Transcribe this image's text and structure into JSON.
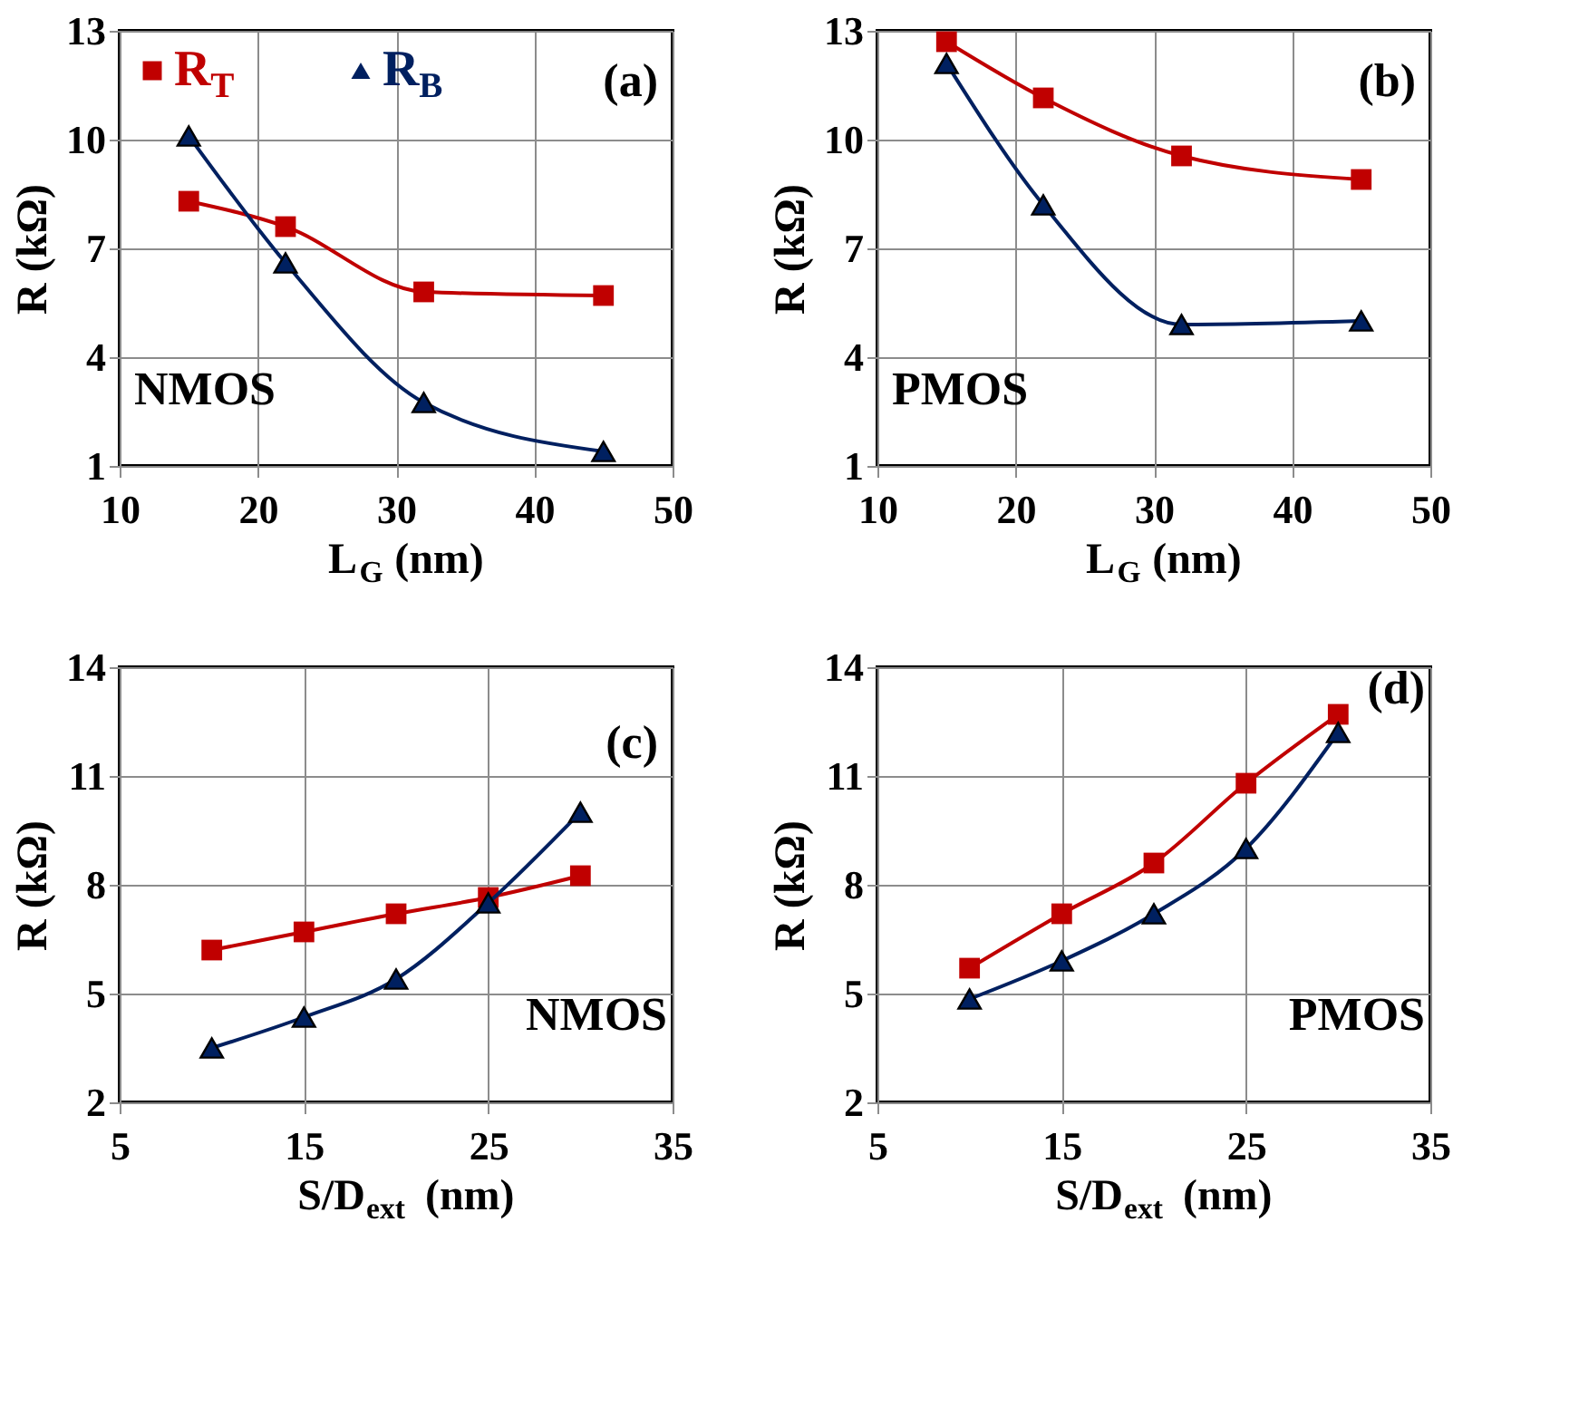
{
  "chart_data": [
    {
      "type": "line",
      "xlabel": "L$_{G}$ (nm)",
      "ylabel": "R (kΩ)",
      "x": [
        15,
        22,
        32,
        45
      ],
      "xlim": [
        10,
        50
      ],
      "xticks": [
        10,
        20,
        30,
        40,
        50
      ],
      "ylim": [
        1,
        13
      ],
      "yticks": [
        1,
        4,
        7,
        10,
        13
      ],
      "grid": true,
      "legend": "top left",
      "annotations": [
        "(a)",
        "NMOS"
      ],
      "series": [
        {
          "name": "R$_{T}$",
          "color": "#c00000",
          "marker": "square",
          "values": [
            8.3,
            7.6,
            5.8,
            5.7
          ]
        },
        {
          "name": "R$_{B}$",
          "color": "#002060",
          "marker": "triangle",
          "values": [
            10.1,
            6.6,
            2.75,
            1.4
          ]
        }
      ]
    },
    {
      "type": "line",
      "xlabel": "L$_{G}$ (nm)",
      "ylabel": "R (kΩ)",
      "x": [
        15,
        22,
        32,
        45
      ],
      "xlim": [
        10,
        50
      ],
      "xticks": [
        10,
        20,
        30,
        40,
        50
      ],
      "ylim": [
        1,
        13
      ],
      "yticks": [
        1,
        4,
        7,
        10,
        13
      ],
      "grid": true,
      "annotations": [
        "(b)",
        "PMOS"
      ],
      "series": [
        {
          "color": "#c00000",
          "marker": "square",
          "values": [
            12.7,
            11.15,
            9.55,
            8.9
          ]
        },
        {
          "color": "#002060",
          "marker": "triangle",
          "values": [
            12.1,
            8.2,
            4.9,
            5.0
          ]
        }
      ]
    },
    {
      "type": "line",
      "xlabel": "S/D$_{ext}$ (nm)",
      "ylabel": "R (kΩ)",
      "x": [
        10,
        15,
        20,
        25,
        30
      ],
      "xlim": [
        5,
        35
      ],
      "xticks": [
        5,
        15,
        25,
        35
      ],
      "ylim": [
        2,
        14
      ],
      "yticks": [
        2,
        5,
        8,
        11,
        14
      ],
      "grid": true,
      "annotations": [
        "(c)",
        "NMOS"
      ],
      "series": [
        {
          "color": "#c00000",
          "marker": "square",
          "values": [
            6.2,
            6.7,
            7.2,
            7.65,
            8.25
          ]
        },
        {
          "color": "#002060",
          "marker": "triangle",
          "values": [
            3.5,
            4.35,
            5.4,
            7.5,
            10.0
          ]
        }
      ]
    },
    {
      "type": "line",
      "xlabel": "S/D$_{ext}$ (nm)",
      "ylabel": "R (kΩ)",
      "x": [
        10,
        15,
        20,
        25,
        30
      ],
      "xlim": [
        5,
        35
      ],
      "xticks": [
        5,
        15,
        25,
        35
      ],
      "ylim": [
        2,
        14
      ],
      "yticks": [
        2,
        5,
        8,
        11,
        14
      ],
      "grid": true,
      "annotations": [
        "(d)",
        "PMOS"
      ],
      "series": [
        {
          "color": "#c00000",
          "marker": "square",
          "values": [
            5.7,
            7.2,
            8.6,
            10.8,
            12.7
          ]
        },
        {
          "color": "#002060",
          "marker": "triangle",
          "values": [
            4.85,
            5.9,
            7.2,
            9.0,
            12.2
          ]
        }
      ]
    }
  ]
}
